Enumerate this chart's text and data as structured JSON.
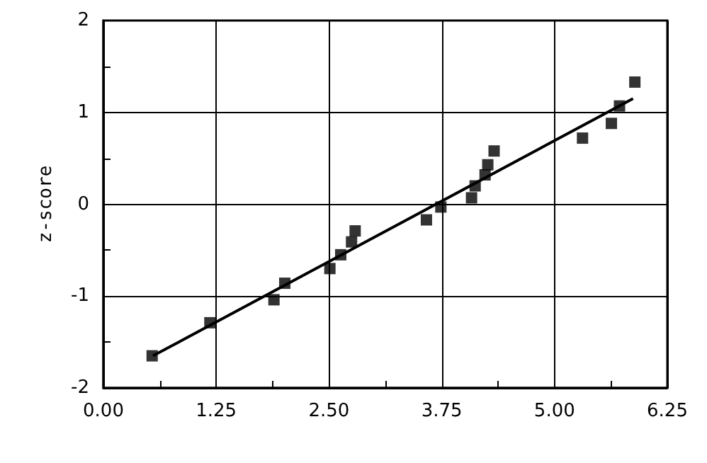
{
  "chart_data": {
    "type": "scatter",
    "ylabel": "z-score",
    "grid": true,
    "xlim": [
      0,
      6.25
    ],
    "ylim": [
      -2,
      2
    ],
    "xticks": [
      {
        "value": 0,
        "label": "0.00"
      },
      {
        "value": 1.25,
        "label": "1.25"
      },
      {
        "value": 2.5,
        "label": "2.50"
      },
      {
        "value": 3.75,
        "label": "3.75"
      },
      {
        "value": 5,
        "label": "5.00"
      },
      {
        "value": 6.25,
        "label": "6.25"
      }
    ],
    "yticks": [
      -2,
      -1,
      0,
      1,
      2
    ],
    "series": [
      {
        "color": "#000000",
        "marker": "square",
        "x": [
          0.54,
          1.18,
          1.89,
          2.01,
          2.51,
          2.63,
          2.75,
          2.79,
          3.58,
          3.74,
          4.08,
          4.12,
          4.23,
          4.26,
          4.33,
          5.31,
          5.63,
          5.72,
          5.89
        ],
        "values": [
          -1.65,
          -1.29,
          -1.04,
          -0.86,
          -0.7,
          -0.55,
          -0.41,
          -0.29,
          -0.17,
          -0.03,
          0.07,
          0.2,
          0.32,
          0.43,
          0.58,
          0.72,
          0.88,
          1.07,
          1.33
        ]
      },
      {
        "type": "line",
        "color": "#000000",
        "line_style": "solid",
        "marker": "none",
        "x": [
          0.55,
          5.87
        ],
        "values": [
          -1.65,
          1.15
        ]
      }
    ]
  }
}
